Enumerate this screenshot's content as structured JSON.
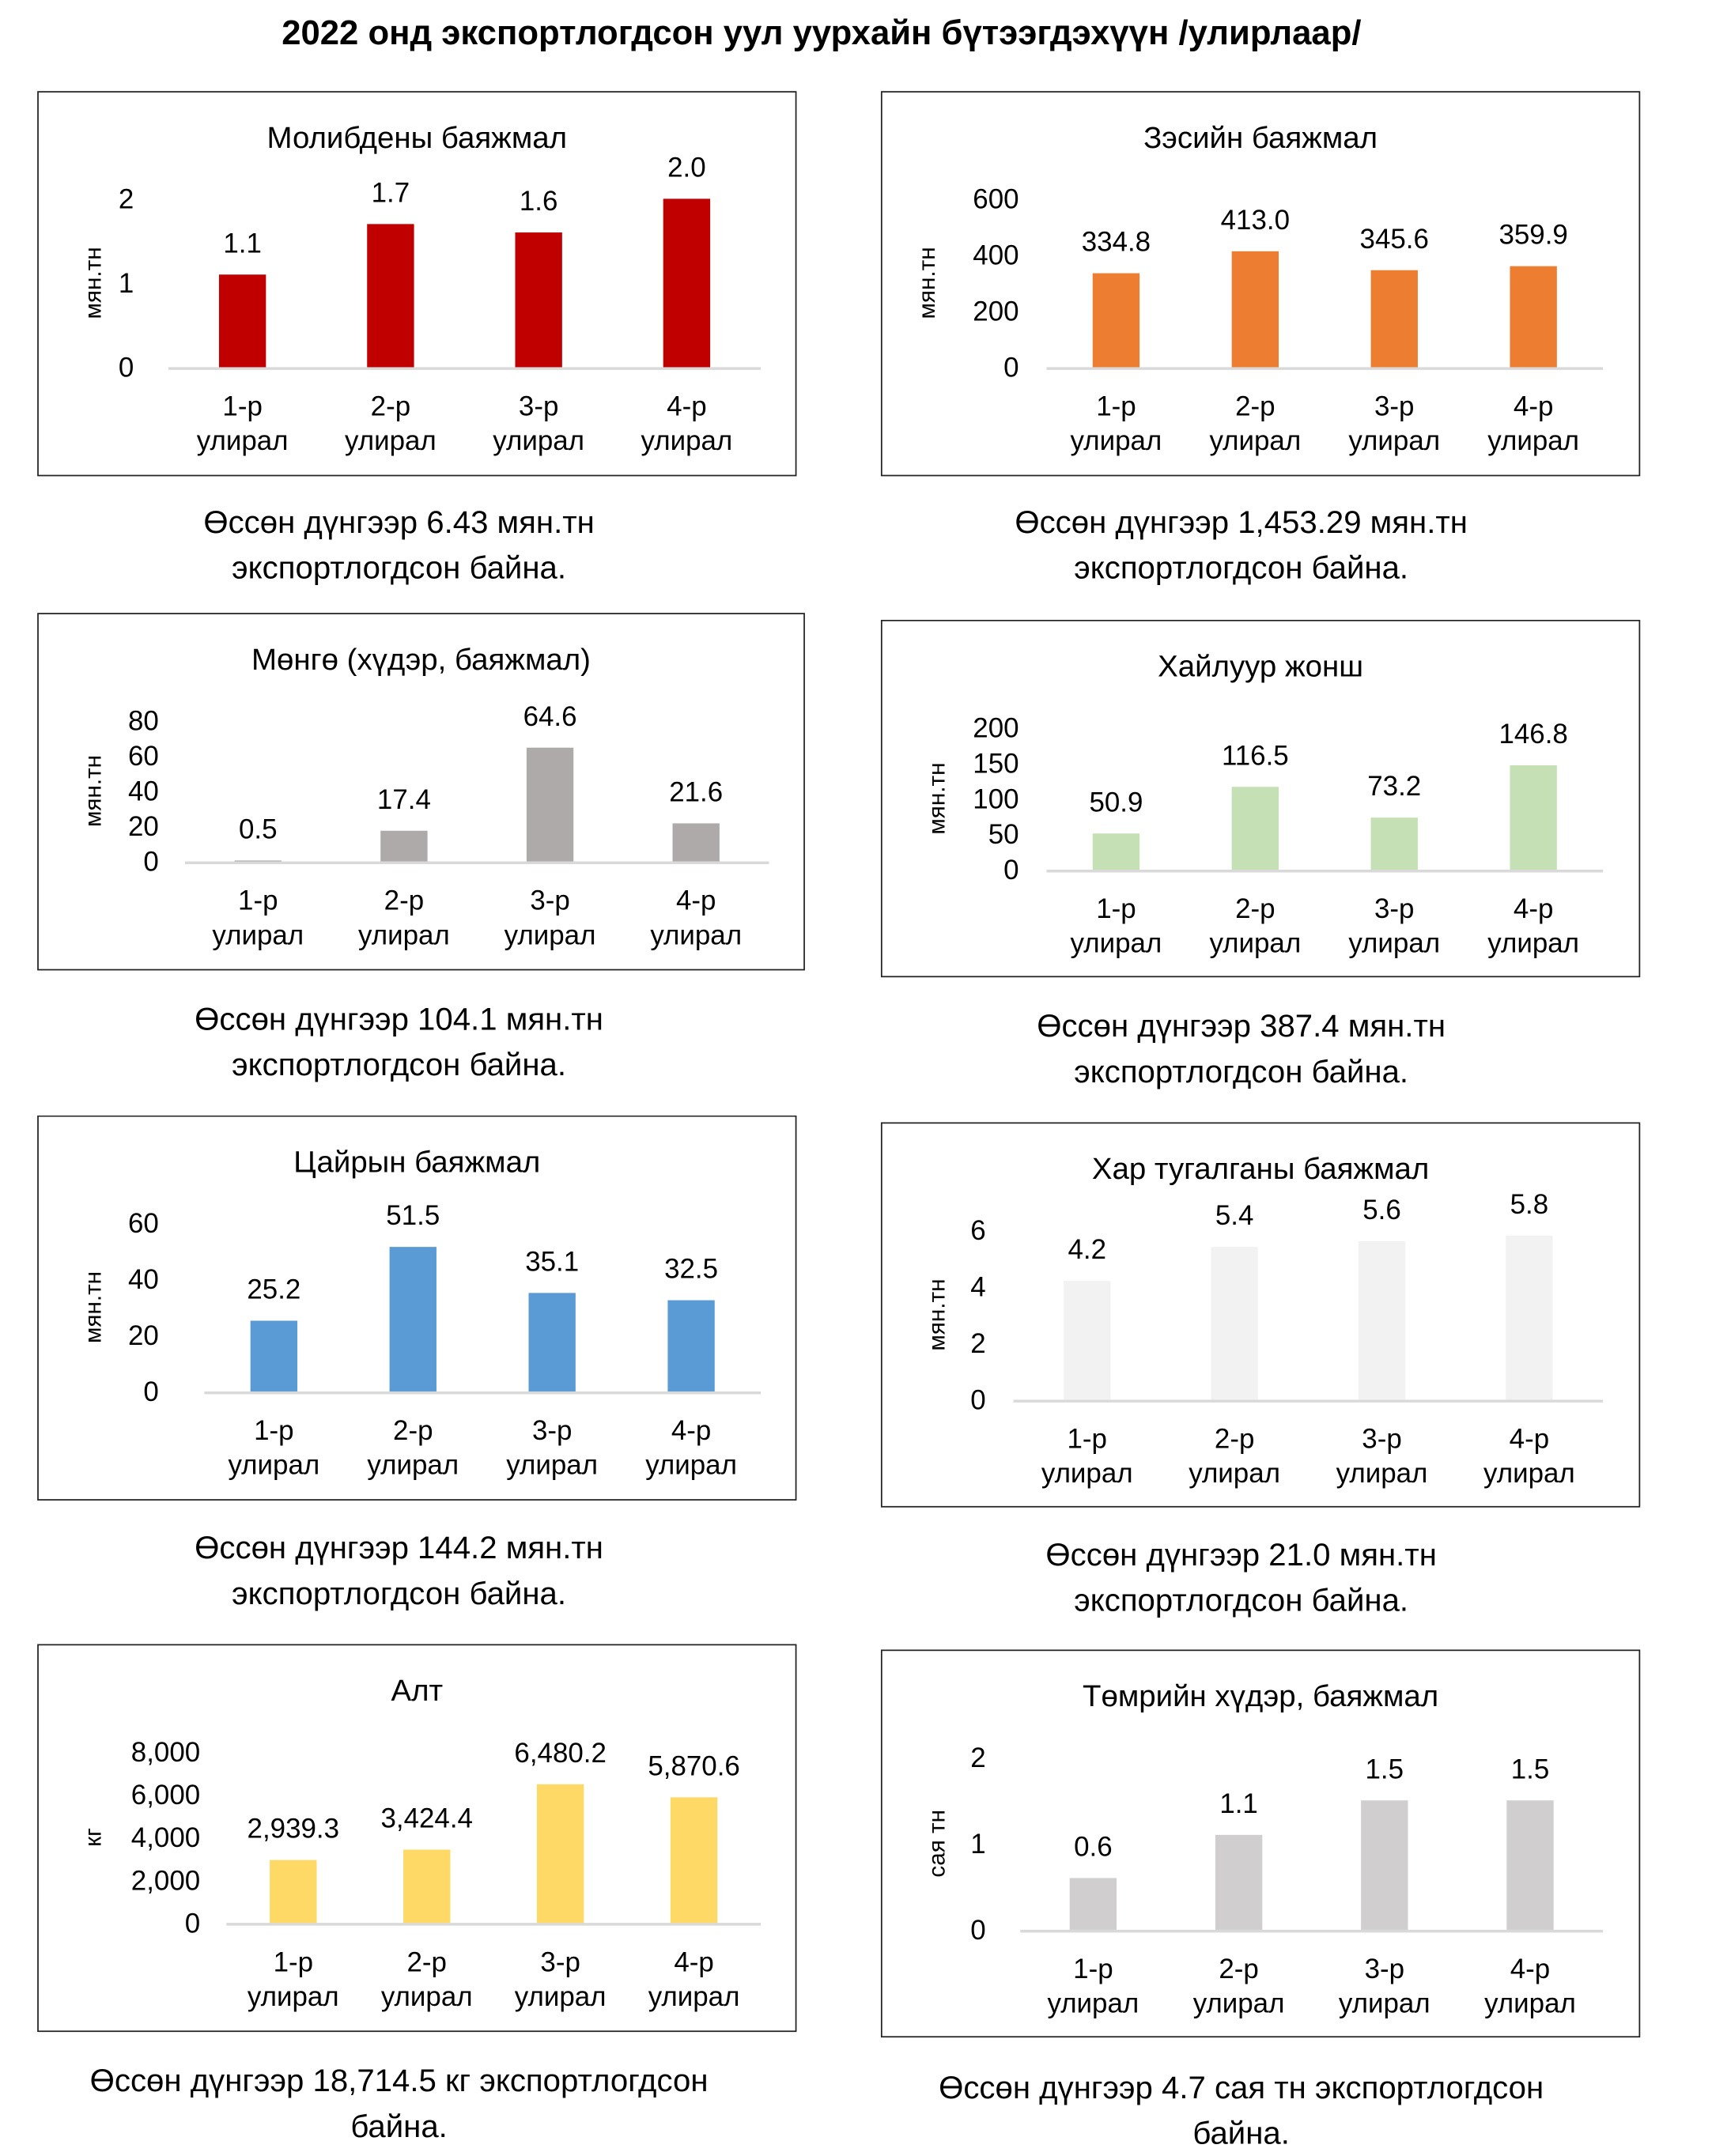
{
  "title": "2022 онд экспортлогдсон уул уурхайн бүтээгдэхүүн /улирлаар/",
  "chart_data": [
    {
      "type": "bar",
      "title": "Молибдены баяжмал",
      "ylabel": "мян.тн",
      "categories": [
        "1-р улирал",
        "2-р улирал",
        "3-р улирал",
        "4-р улирал"
      ],
      "values": [
        1.1,
        1.7,
        1.6,
        2.0
      ],
      "data_labels": [
        "1.1",
        "1.7",
        "1.6",
        "2.0"
      ],
      "ylim": [
        0,
        2
      ],
      "yticks": [
        "0",
        "1",
        "2"
      ],
      "color": "#C00000",
      "caption": [
        "Өссөн дүнгээр 6.43 мян.тн",
        "экспортлогдсон байна."
      ]
    },
    {
      "type": "bar",
      "title": "Зэсийн баяжмал",
      "ylabel": "мян.тн",
      "categories": [
        "1-р улирал",
        "2-р улирал",
        "3-р улирал",
        "4-р улирал"
      ],
      "values": [
        334.8,
        413.0,
        345.6,
        359.9
      ],
      "data_labels": [
        "334.8",
        "413.0",
        "345.6",
        "359.9"
      ],
      "ylim": [
        0,
        600
      ],
      "yticks": [
        "0",
        "200",
        "400",
        "600"
      ],
      "color": "#ED7D31",
      "caption": [
        "Өссөн дүнгээр 1,453.29 мян.тн",
        "экспортлогдсон байна."
      ]
    },
    {
      "type": "bar",
      "title": "Мөнгө (хүдэр, баяжмал)",
      "ylabel": "мян.тн",
      "categories": [
        "1-р улирал",
        "2-р улирал",
        "3-р улирал",
        "4-р улирал"
      ],
      "values": [
        0.5,
        17.4,
        64.6,
        21.6
      ],
      "data_labels": [
        "0.5",
        "17.4",
        "64.6",
        "21.6"
      ],
      "ylim": [
        0,
        80
      ],
      "yticks": [
        "0",
        "20",
        "40",
        "60",
        "80"
      ],
      "color": "#AEAAAA",
      "caption": [
        "Өссөн дүнгээр 104.1 мян.тн",
        "экспортлогдсон байна."
      ]
    },
    {
      "type": "bar",
      "title": "Хайлуур жонш",
      "ylabel": "мян.тн",
      "categories": [
        "1-р улирал",
        "2-р улирал",
        "3-р улирал",
        "4-р улирал"
      ],
      "values": [
        50.9,
        116.5,
        73.2,
        146.8
      ],
      "data_labels": [
        "50.9",
        "116.5",
        "73.2",
        "146.8"
      ],
      "ylim": [
        0,
        200
      ],
      "yticks": [
        "0",
        "50",
        "100",
        "150",
        "200"
      ],
      "color": "#C5E0B4",
      "caption": [
        "Өссөн дүнгээр 387.4 мян.тн",
        "экспортлогдсон байна."
      ]
    },
    {
      "type": "bar",
      "title": "Цайрын баяжмал",
      "ylabel": "мян.тн",
      "categories": [
        "1-р улирал",
        "2-р улирал",
        "3-р улирал",
        "4-р улирал"
      ],
      "values": [
        25.2,
        51.5,
        35.1,
        32.5
      ],
      "data_labels": [
        "25.2",
        "51.5",
        "35.1",
        "32.5"
      ],
      "ylim": [
        0,
        60
      ],
      "yticks": [
        "0",
        "20",
        "40",
        "60"
      ],
      "color": "#5B9BD5",
      "caption": [
        "Өссөн дүнгээр 144.2 мян.тн",
        "экспортлогдсон байна."
      ]
    },
    {
      "type": "bar",
      "title": "Хар тугалганы баяжмал",
      "ylabel": "мян.тн",
      "categories": [
        "1-р улирал",
        "2-р улирал",
        "3-р улирал",
        "4-р улирал"
      ],
      "values": [
        4.2,
        5.4,
        5.6,
        5.8
      ],
      "data_labels": [
        "4.2",
        "5.4",
        "5.6",
        "5.8"
      ],
      "ylim": [
        0,
        6
      ],
      "yticks": [
        "0",
        "2",
        "4",
        "6"
      ],
      "color": "#F2F2F2",
      "caption": [
        "Өссөн дүнгээр 21.0 мян.тн",
        "экспортлогдсон байна."
      ]
    },
    {
      "type": "bar",
      "title": "Алт",
      "ylabel": "кг",
      "categories": [
        "1-р улирал",
        "2-р улирал",
        "3-р улирал",
        "4-р улирал"
      ],
      "values": [
        2939.3,
        3424.4,
        6480.2,
        5870.6
      ],
      "data_labels": [
        "2,939.3",
        "3,424.4",
        "6,480.2",
        "5,870.6"
      ],
      "ylim": [
        0,
        8000
      ],
      "yticks": [
        "0",
        "2,000",
        "4,000",
        "6,000",
        "8,000"
      ],
      "color": "#FFD966",
      "caption": [
        "Өссөн дүнгээр 18,714.5 кг экспортлогдсон",
        "байна."
      ]
    },
    {
      "type": "bar",
      "title": "Төмрийн хүдэр, баяжмал",
      "ylabel": "сая тн",
      "categories": [
        "1-р улирал",
        "2-р улирал",
        "3-р улирал",
        "4-р улирал"
      ],
      "values": [
        0.6,
        1.1,
        1.5,
        1.5
      ],
      "data_labels": [
        "0.6",
        "1.1",
        "1.5",
        "1.5"
      ],
      "ylim": [
        0,
        2
      ],
      "yticks": [
        "0",
        "1",
        "2"
      ],
      "color": "#D0CECE",
      "caption": [
        "Өссөн дүнгээр 4.7 сая тн экспортлогдсон",
        "байна."
      ]
    }
  ]
}
